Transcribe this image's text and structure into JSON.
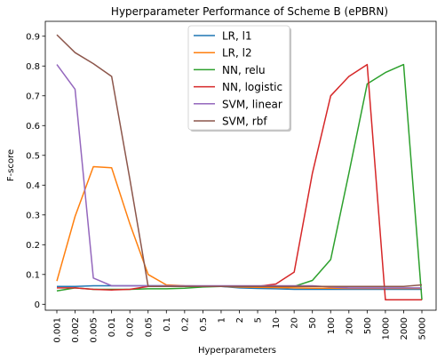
{
  "chart_data": {
    "type": "line",
    "title": "Hyperparameter Performance of Scheme B (ePBRN)",
    "xlabel": "Hyperparameters",
    "ylabel": "F-score",
    "categories": [
      "0.001",
      "0.002",
      "0.005",
      "0.01",
      "0.02",
      "0.05",
      "0.1",
      "0.2",
      "0.5",
      "1",
      "2",
      "5",
      "10",
      "20",
      "50",
      "100",
      "200",
      "500",
      "1000",
      "2000",
      "5000"
    ],
    "ylim": [
      -0.02,
      0.95
    ],
    "yticks": [
      "0",
      "0.1",
      "0.2",
      "0.3",
      "0.4",
      "0.5",
      "0.6",
      "0.7",
      "0.8",
      "0.9"
    ],
    "legend_position": "upper center",
    "series": [
      {
        "name": "LR, l1",
        "color": "#1f77b4",
        "values": [
          0.06,
          0.06,
          0.062,
          0.062,
          0.062,
          0.062,
          0.062,
          0.061,
          0.061,
          0.06,
          0.055,
          0.053,
          0.052,
          0.05,
          0.05,
          0.05,
          0.05,
          0.05,
          0.05,
          0.05,
          0.05
        ]
      },
      {
        "name": "LR, l2",
        "color": "#ff7f0e",
        "values": [
          0.078,
          0.295,
          0.462,
          0.458,
          0.27,
          0.1,
          0.065,
          0.062,
          0.061,
          0.06,
          0.058,
          0.057,
          0.056,
          0.055,
          0.054,
          0.054,
          0.053,
          0.053,
          0.053,
          0.053,
          0.053
        ]
      },
      {
        "name": "NN, relu",
        "color": "#2ca02c",
        "values": [
          0.045,
          0.055,
          0.05,
          0.05,
          0.05,
          0.052,
          0.052,
          0.054,
          0.058,
          0.06,
          0.06,
          0.06,
          0.06,
          0.06,
          0.08,
          0.15,
          0.44,
          0.74,
          0.778,
          0.805,
          0.015
        ]
      },
      {
        "name": "NN, logistic",
        "color": "#d62728",
        "values": [
          0.055,
          0.055,
          0.05,
          0.048,
          0.05,
          0.06,
          0.06,
          0.06,
          0.06,
          0.06,
          0.06,
          0.06,
          0.068,
          0.108,
          0.44,
          0.7,
          0.765,
          0.805,
          0.015,
          0.015,
          0.015
        ]
      },
      {
        "name": "SVM, linear",
        "color": "#9467bd",
        "values": [
          0.805,
          0.722,
          0.088,
          0.062,
          0.062,
          0.062,
          0.062,
          0.062,
          0.062,
          0.062,
          0.062,
          0.062,
          0.062,
          0.062,
          0.062,
          0.058,
          0.055,
          0.055,
          0.055,
          0.055,
          0.055
        ]
      },
      {
        "name": "SVM, rbf",
        "color": "#8c564b",
        "values": [
          0.905,
          0.845,
          0.808,
          0.765,
          0.42,
          0.06,
          0.06,
          0.06,
          0.06,
          0.06,
          0.06,
          0.06,
          0.06,
          0.06,
          0.06,
          0.06,
          0.06,
          0.06,
          0.06,
          0.06,
          0.065
        ]
      }
    ]
  }
}
